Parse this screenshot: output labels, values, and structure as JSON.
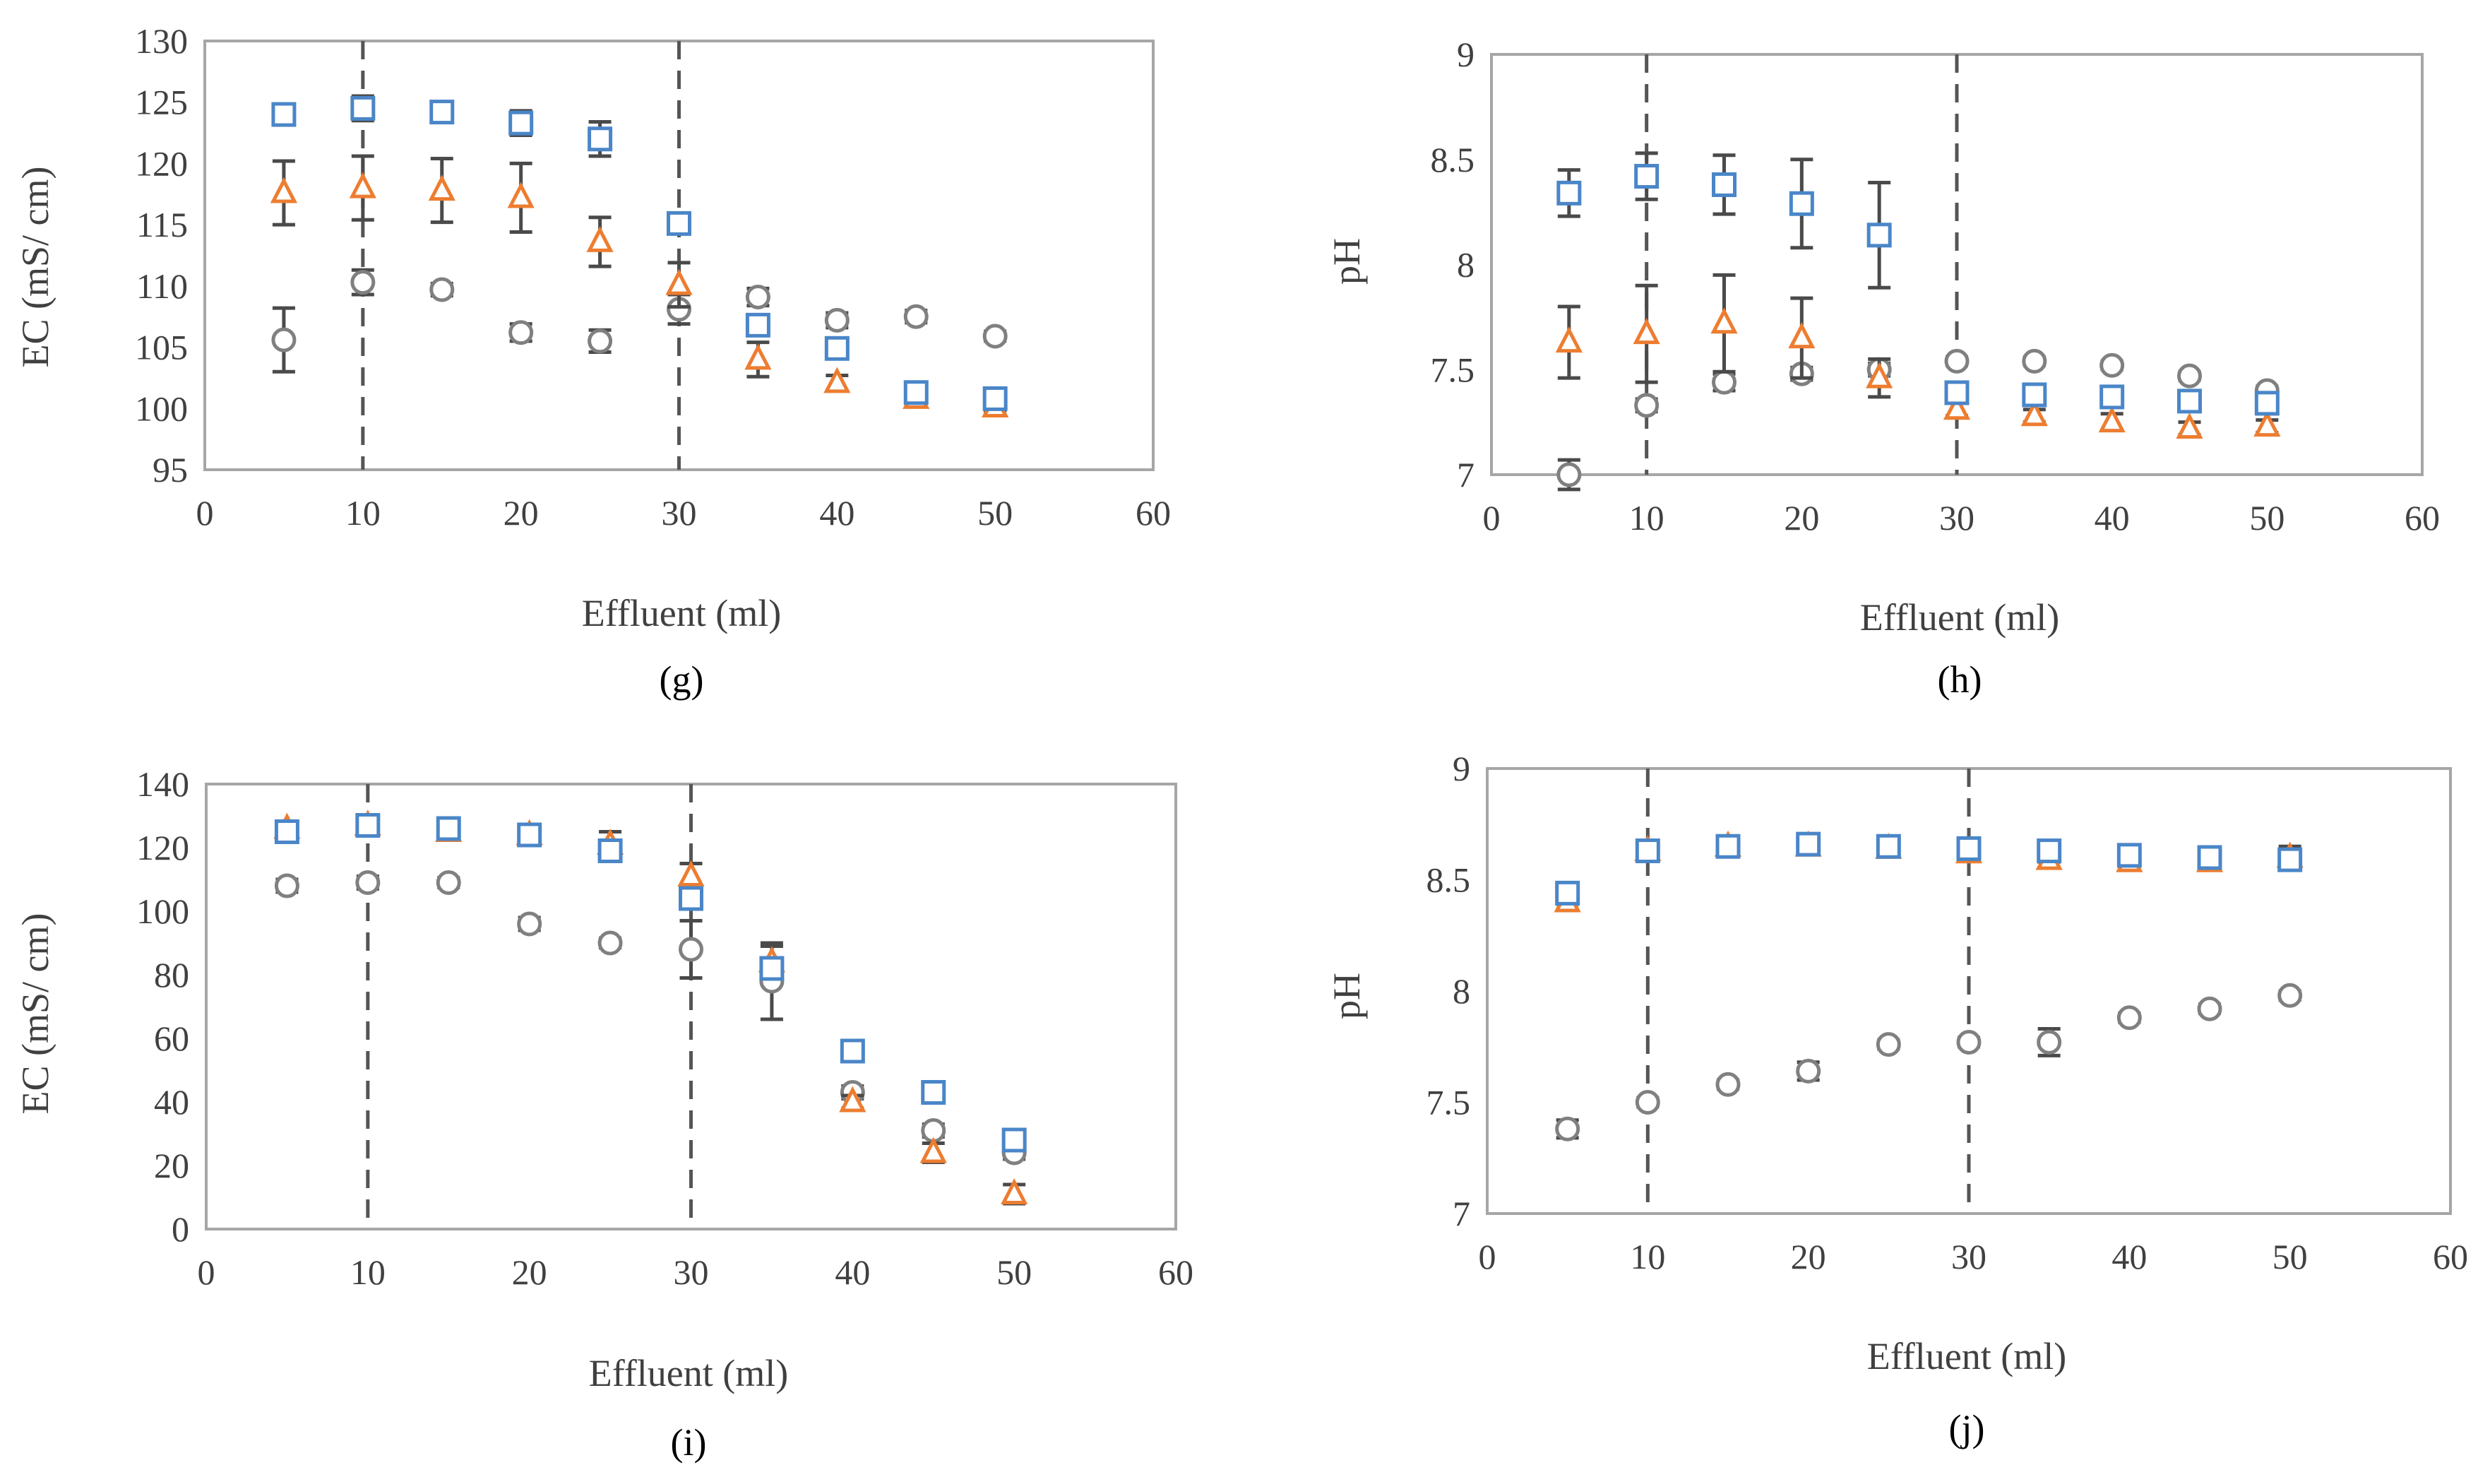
{
  "figure": {
    "series_styles": [
      {
        "name": "square series",
        "marker": "square",
        "color": "#4a86c8"
      },
      {
        "name": "triangle series",
        "marker": "triangle",
        "color": "#ed7d31"
      },
      {
        "name": "circle series",
        "marker": "circle",
        "color": "#808080"
      }
    ],
    "errorbar_color": "#4a4a4a",
    "vline_color": "#555555",
    "frame_color": "#a6a6a6"
  },
  "chart_data": [
    {
      "id": "g",
      "type": "scatter",
      "caption": "(g)",
      "title": "",
      "xlabel": "Effluent (ml)",
      "ylabel": "EC (mS/ cm)",
      "xlim": [
        0,
        60
      ],
      "ylim": [
        95,
        130
      ],
      "xticks": [
        "0",
        "10",
        "20",
        "30",
        "40",
        "50",
        "60"
      ],
      "xtick_values": [
        0,
        10,
        20,
        30,
        40,
        50,
        60
      ],
      "yticks": [
        "95",
        "100",
        "105",
        "110",
        "115",
        "120",
        "125",
        "130"
      ],
      "ytick_values": [
        95,
        100,
        105,
        110,
        115,
        120,
        125,
        130
      ],
      "vlines": [
        10,
        30
      ],
      "x": [
        5,
        10,
        15,
        20,
        25,
        30,
        35,
        40,
        45,
        50
      ],
      "series": [
        {
          "name": "square series",
          "values": [
            124.0,
            124.5,
            124.2,
            123.3,
            122.0,
            115.1,
            106.8,
            104.9,
            101.3,
            100.8
          ],
          "errors": [
            0.5,
            1.0,
            0.6,
            1.0,
            1.4,
            0.5,
            0.8,
            0.8,
            0.4,
            0.4
          ]
        },
        {
          "name": "triangle series",
          "values": [
            117.6,
            118.0,
            117.8,
            117.2,
            113.6,
            110.1,
            104.0,
            102.1,
            100.8,
            100.1
          ],
          "errors": [
            2.6,
            2.6,
            2.6,
            2.8,
            2.0,
            1.8,
            1.4,
            0.6,
            0.4,
            0.3
          ]
        },
        {
          "name": "circle series",
          "values": [
            105.6,
            110.3,
            109.7,
            106.2,
            105.5,
            108.1,
            109.1,
            107.2,
            107.5,
            105.9
          ],
          "errors": [
            2.6,
            1.0,
            0.5,
            0.7,
            0.9,
            1.2,
            0.7,
            0.6,
            0.5,
            0.4
          ]
        }
      ]
    },
    {
      "id": "h",
      "type": "scatter",
      "caption": "(h)",
      "title": "",
      "xlabel": "Effluent (ml)",
      "ylabel": "pH",
      "xlim": [
        0,
        60
      ],
      "ylim": [
        7,
        9
      ],
      "xticks": [
        "0",
        "10",
        "20",
        "30",
        "40",
        "50",
        "60"
      ],
      "xtick_values": [
        0,
        10,
        20,
        30,
        40,
        50,
        60
      ],
      "yticks": [
        "7",
        "7.5",
        "8",
        "8.5",
        "9"
      ],
      "ytick_values": [
        7,
        7.5,
        8,
        8.5,
        9
      ],
      "vlines": [
        10,
        30
      ],
      "x": [
        5,
        10,
        15,
        20,
        25,
        30,
        35,
        40,
        45,
        50
      ],
      "series": [
        {
          "name": "square series",
          "values": [
            8.34,
            8.42,
            8.38,
            8.29,
            8.14,
            7.39,
            7.38,
            7.37,
            7.35,
            7.34
          ],
          "errors": [
            0.11,
            0.11,
            0.14,
            0.21,
            0.25,
            0.04,
            0.05,
            0.04,
            0.04,
            0.05
          ]
        },
        {
          "name": "triangle series",
          "values": [
            7.63,
            7.67,
            7.72,
            7.65,
            7.46,
            7.31,
            7.28,
            7.25,
            7.22,
            7.23
          ],
          "errors": [
            0.17,
            0.23,
            0.23,
            0.19,
            0.09,
            0.03,
            0.03,
            0.04,
            0.03,
            0.03
          ]
        },
        {
          "name": "circle series",
          "values": [
            7.0,
            7.33,
            7.44,
            7.48,
            7.5,
            7.54,
            7.54,
            7.52,
            7.47,
            7.4
          ],
          "errors": [
            0.07,
            0.03,
            0.04,
            0.03,
            0.03,
            0.02,
            0.02,
            0.02,
            0.02,
            0.02
          ]
        }
      ]
    },
    {
      "id": "i",
      "type": "scatter",
      "caption": "(i)",
      "title": "",
      "xlabel": "Effluent (ml)",
      "ylabel": "EC (mS/ cm)",
      "xlim": [
        0,
        60
      ],
      "ylim": [
        0,
        140
      ],
      "xticks": [
        "0",
        "10",
        "20",
        "30",
        "40",
        "50",
        "60"
      ],
      "xtick_values": [
        0,
        10,
        20,
        30,
        40,
        50,
        60
      ],
      "yticks": [
        "0",
        "20",
        "40",
        "60",
        "80",
        "100",
        "120",
        "140"
      ],
      "ytick_values": [
        0,
        20,
        40,
        60,
        80,
        100,
        120,
        140
      ],
      "vlines": [
        10,
        30
      ],
      "x": [
        5,
        10,
        15,
        20,
        25,
        30,
        35,
        40,
        45,
        50
      ],
      "series": [
        {
          "name": "square series",
          "values": [
            125,
            127,
            126,
            124,
            119,
            104,
            82,
            56,
            43,
            28
          ],
          "errors": [
            1.5,
            1.5,
            1.5,
            2,
            2,
            3,
            3,
            1.5,
            2,
            2
          ]
        },
        {
          "name": "triangle series",
          "values": [
            126,
            127,
            125,
            124,
            121,
            111,
            84,
            40,
            24,
            11
          ],
          "errors": [
            2,
            2,
            2,
            2,
            4,
            4,
            5,
            2,
            3,
            3
          ]
        },
        {
          "name": "circle series",
          "values": [
            108,
            109,
            109,
            96,
            90,
            88,
            78,
            43,
            31,
            24
          ],
          "errors": [
            2,
            2,
            1.5,
            2,
            1.5,
            9,
            12,
            2,
            2,
            2
          ]
        }
      ]
    },
    {
      "id": "j",
      "type": "scatter",
      "caption": "(j)",
      "title": "",
      "xlabel": "Effluent (ml)",
      "ylabel": "pH",
      "xlim": [
        0,
        60
      ],
      "ylim": [
        7,
        9
      ],
      "xticks": [
        "0",
        "10",
        "20",
        "30",
        "40",
        "50",
        "60"
      ],
      "xtick_values": [
        0,
        10,
        20,
        30,
        40,
        50,
        60
      ],
      "yticks": [
        "7",
        "7.5",
        "8",
        "8.5",
        "9"
      ],
      "ytick_values": [
        7,
        7.5,
        8,
        8.5,
        9
      ],
      "vlines": [
        10,
        30
      ],
      "x": [
        5,
        10,
        15,
        20,
        25,
        30,
        35,
        40,
        45,
        50
      ],
      "series": [
        {
          "name": "square series",
          "values": [
            8.44,
            8.63,
            8.65,
            8.66,
            8.65,
            8.64,
            8.63,
            8.61,
            8.6,
            8.59
          ],
          "errors": [
            0.01,
            0.01,
            0.01,
            0.01,
            0.01,
            0.01,
            0.01,
            0.01,
            0.01,
            0.04
          ]
        },
        {
          "name": "triangle series",
          "values": [
            8.4,
            8.63,
            8.65,
            8.65,
            8.64,
            8.62,
            8.59,
            8.58,
            8.58,
            8.6
          ],
          "errors": [
            0.01,
            0.01,
            0.01,
            0.01,
            0.01,
            0.01,
            0.01,
            0.02,
            0.02,
            0.05
          ]
        },
        {
          "name": "circle series",
          "values": [
            7.38,
            7.5,
            7.58,
            7.64,
            7.76,
            7.77,
            7.77,
            7.88,
            7.92,
            7.98
          ],
          "errors": [
            0.04,
            0.02,
            0.02,
            0.04,
            0.02,
            0.02,
            0.06,
            0.02,
            0.02,
            0.02
          ]
        }
      ]
    }
  ]
}
